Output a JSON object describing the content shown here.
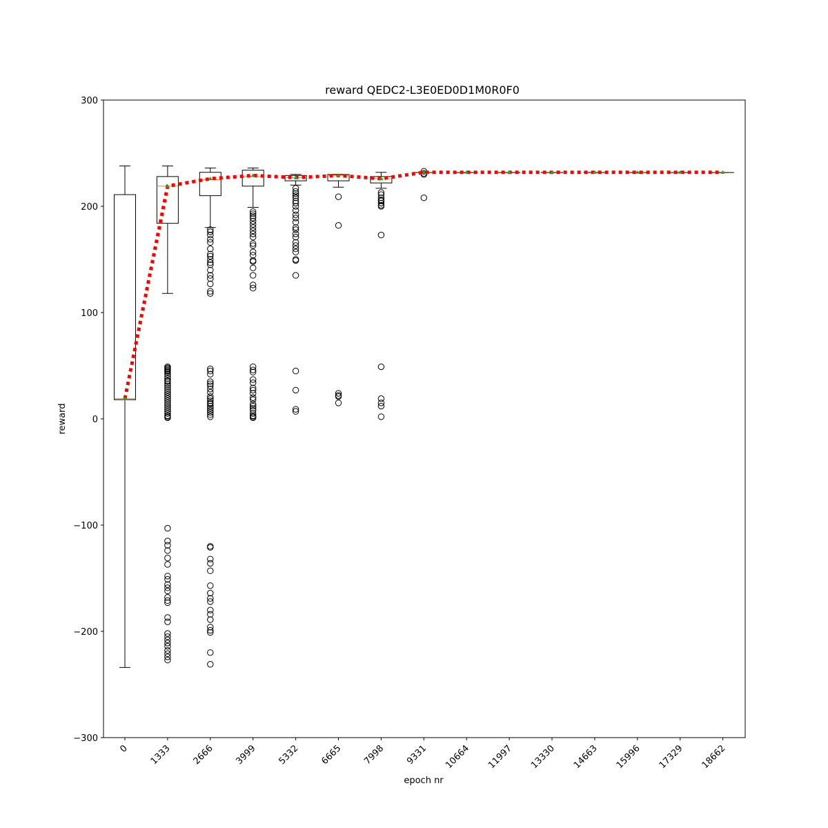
{
  "chart_data": {
    "type": "box",
    "title": "reward QEDC2-L3E0ED0D1M0R0F0",
    "xlabel": "epoch nr",
    "ylabel": "reward",
    "ylim": [
      -300,
      300
    ],
    "yticks": [
      -300,
      -200,
      -100,
      0,
      100,
      200,
      300
    ],
    "yticklabels": [
      "−300",
      "−200",
      "−100",
      "0",
      "100",
      "200",
      "300"
    ],
    "categories": [
      "0",
      "1333",
      "2666",
      "3999",
      "5332",
      "6665",
      "7998",
      "9331",
      "10664",
      "11997",
      "13330",
      "14663",
      "15996",
      "17329",
      "18662"
    ],
    "boxes": [
      {
        "whislo": -234,
        "q1": 18,
        "med": 19,
        "q3": 211,
        "whishi": 238,
        "fliers": []
      },
      {
        "whislo": 118,
        "q1": 184,
        "med": 219,
        "q3": 228,
        "whishi": 238,
        "fliers": [
          49,
          48,
          47,
          46,
          45,
          44,
          42,
          40,
          38,
          36,
          35,
          33,
          31,
          29,
          27,
          25,
          23,
          21,
          19,
          17,
          15,
          13,
          11,
          9,
          7,
          5,
          3,
          2,
          1,
          -103,
          -115,
          -119,
          -124,
          -131,
          -137,
          -148,
          -151,
          -156,
          -159,
          -162,
          -168,
          -171,
          -173,
          -187,
          -191,
          -202,
          -205,
          -208,
          -211,
          -214,
          -218,
          -221,
          -224,
          -227
        ]
      },
      {
        "whislo": 180,
        "q1": 210,
        "med": 225,
        "q3": 232,
        "whishi": 236,
        "fliers": [
          178,
          176,
          173,
          169,
          166,
          160,
          155,
          153,
          150,
          147,
          145,
          140,
          135,
          132,
          127,
          120,
          118,
          47,
          45,
          42,
          35,
          33,
          31,
          28,
          25,
          21,
          19,
          17,
          15,
          14,
          12,
          10,
          8,
          6,
          4,
          2,
          -120,
          -121,
          -132,
          -136,
          -143,
          -157,
          -164,
          -169,
          -172,
          -180,
          -184,
          -189,
          -196,
          -199,
          -201,
          -220,
          -231
        ]
      },
      {
        "whislo": 199,
        "q1": 219,
        "med": 228,
        "q3": 234,
        "whishi": 236,
        "fliers": [
          195,
          193,
          191,
          189,
          186,
          183,
          180,
          177,
          174,
          171,
          165,
          163,
          157,
          154,
          149,
          148,
          142,
          135,
          126,
          123,
          49,
          46,
          44,
          37,
          34,
          29,
          27,
          24,
          20,
          18,
          14,
          12,
          10,
          8,
          5,
          3,
          2,
          1
        ]
      },
      {
        "whislo": 220,
        "q1": 224,
        "med": 227,
        "q3": 229,
        "whishi": 230,
        "fliers": [
          217,
          214,
          212,
          210,
          208,
          205,
          203,
          200,
          196,
          192,
          189,
          185,
          180,
          178,
          174,
          171,
          166,
          163,
          160,
          157,
          150,
          149,
          135,
          45,
          27,
          9,
          7
        ]
      },
      {
        "whislo": 218,
        "q1": 224,
        "med": 229,
        "q3": 230,
        "whishi": 230,
        "fliers": [
          209,
          182,
          24,
          22,
          21,
          15
        ]
      },
      {
        "whislo": 217,
        "q1": 222,
        "med": 226,
        "q3": 228,
        "whishi": 232,
        "fliers": [
          213,
          211,
          208,
          206,
          205,
          203,
          201,
          200,
          173,
          49,
          19,
          15,
          12,
          2
        ]
      },
      {
        "whislo": 232,
        "q1": 232,
        "med": 232,
        "q3": 232,
        "whishi": 232,
        "fliers": [
          233,
          231,
          230,
          208
        ]
      },
      {
        "whislo": 232,
        "q1": 232,
        "med": 232,
        "q3": 232,
        "whishi": 232,
        "fliers": []
      },
      {
        "whislo": 232,
        "q1": 232,
        "med": 232,
        "q3": 232,
        "whishi": 232,
        "fliers": []
      },
      {
        "whislo": 232,
        "q1": 232,
        "med": 232,
        "q3": 232,
        "whishi": 232,
        "fliers": []
      },
      {
        "whislo": 232,
        "q1": 232,
        "med": 232,
        "q3": 232,
        "whishi": 232,
        "fliers": []
      },
      {
        "whislo": 232,
        "q1": 232,
        "med": 232,
        "q3": 232,
        "whishi": 232,
        "fliers": []
      },
      {
        "whislo": 232,
        "q1": 232,
        "med": 232,
        "q3": 232,
        "whishi": 232,
        "fliers": []
      },
      {
        "whislo": 232,
        "q1": 232,
        "med": 232,
        "q3": 232,
        "whishi": 232,
        "fliers": []
      }
    ],
    "mean_line": {
      "values": [
        19,
        219,
        226,
        229,
        227,
        229,
        226,
        232,
        232,
        232,
        232,
        232,
        232,
        232,
        232
      ],
      "color": "#ff0000",
      "style": "dotted"
    },
    "median_color": "#ff7f0e",
    "mean_marker_color": "#2ca02c"
  }
}
